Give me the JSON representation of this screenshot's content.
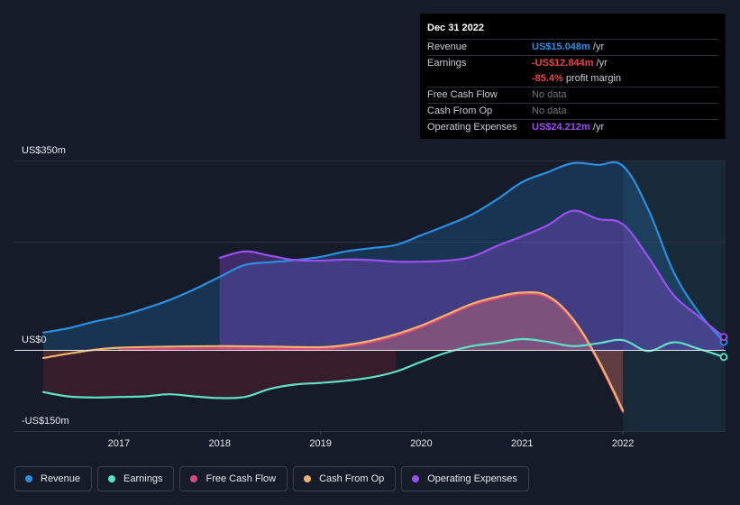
{
  "chart_data": {
    "type": "area",
    "x_ticks": [
      "2017",
      "2018",
      "2019",
      "2020",
      "2021",
      "2022"
    ],
    "y_tick_labels": [
      "US$350m",
      "US$0",
      "-US$150m"
    ],
    "ylim": [
      -150,
      350
    ],
    "xlim": [
      2016.25,
      2023.0
    ],
    "forecast_start": 2022.0,
    "series": [
      {
        "name": "Revenue",
        "color": "#2a8ee0",
        "points": [
          [
            2016.25,
            32
          ],
          [
            2016.5,
            40
          ],
          [
            2016.75,
            52
          ],
          [
            2017.0,
            62
          ],
          [
            2017.25,
            76
          ],
          [
            2017.5,
            92
          ],
          [
            2017.75,
            112
          ],
          [
            2018.0,
            135
          ],
          [
            2018.25,
            157
          ],
          [
            2018.5,
            162
          ],
          [
            2018.75,
            166
          ],
          [
            2019.0,
            172
          ],
          [
            2019.25,
            182
          ],
          [
            2019.5,
            188
          ],
          [
            2019.75,
            194
          ],
          [
            2020.0,
            212
          ],
          [
            2020.25,
            230
          ],
          [
            2020.5,
            250
          ],
          [
            2020.75,
            278
          ],
          [
            2021.0,
            310
          ],
          [
            2021.25,
            328
          ],
          [
            2021.5,
            345
          ],
          [
            2021.75,
            342
          ],
          [
            2022.0,
            340
          ],
          [
            2022.25,
            260
          ],
          [
            2022.5,
            145
          ],
          [
            2022.75,
            70
          ],
          [
            2023.0,
            15
          ]
        ]
      },
      {
        "name": "Earnings",
        "color": "#5ee0c6",
        "points": [
          [
            2016.25,
            -78
          ],
          [
            2016.5,
            -86
          ],
          [
            2016.75,
            -88
          ],
          [
            2017.0,
            -87
          ],
          [
            2017.25,
            -86
          ],
          [
            2017.5,
            -82
          ],
          [
            2017.75,
            -86
          ],
          [
            2018.0,
            -89
          ],
          [
            2018.25,
            -87
          ],
          [
            2018.5,
            -72
          ],
          [
            2018.75,
            -64
          ],
          [
            2019.0,
            -61
          ],
          [
            2019.25,
            -57
          ],
          [
            2019.5,
            -51
          ],
          [
            2019.75,
            -40
          ],
          [
            2020.0,
            -22
          ],
          [
            2020.25,
            -5
          ],
          [
            2020.5,
            7
          ],
          [
            2020.75,
            13
          ],
          [
            2021.0,
            20
          ],
          [
            2021.25,
            15
          ],
          [
            2021.5,
            7
          ],
          [
            2021.75,
            12
          ],
          [
            2022.0,
            18
          ],
          [
            2022.25,
            -2
          ],
          [
            2022.5,
            14
          ],
          [
            2022.75,
            2
          ],
          [
            2023.0,
            -13
          ]
        ]
      },
      {
        "name": "Free Cash Flow",
        "color": "#d9487f",
        "points": [
          [
            2017.0,
            0
          ],
          [
            2017.5,
            2
          ],
          [
            2018.0,
            3
          ],
          [
            2018.5,
            2
          ],
          [
            2019.0,
            2
          ],
          [
            2019.25,
            6
          ],
          [
            2019.5,
            14
          ],
          [
            2019.75,
            26
          ],
          [
            2020.0,
            42
          ],
          [
            2020.25,
            62
          ],
          [
            2020.5,
            82
          ],
          [
            2020.75,
            95
          ],
          [
            2021.0,
            103
          ],
          [
            2021.25,
            97
          ],
          [
            2021.5,
            55
          ],
          [
            2021.75,
            -20
          ],
          [
            2022.0,
            -115
          ]
        ]
      },
      {
        "name": "Cash From Op",
        "color": "#f0b36a",
        "points": [
          [
            2016.25,
            -15
          ],
          [
            2016.5,
            -7
          ],
          [
            2016.75,
            0
          ],
          [
            2017.0,
            4
          ],
          [
            2017.5,
            6
          ],
          [
            2018.0,
            7
          ],
          [
            2018.5,
            6
          ],
          [
            2019.0,
            5
          ],
          [
            2019.25,
            9
          ],
          [
            2019.5,
            17
          ],
          [
            2019.75,
            29
          ],
          [
            2020.0,
            45
          ],
          [
            2020.25,
            65
          ],
          [
            2020.5,
            85
          ],
          [
            2020.75,
            98
          ],
          [
            2021.0,
            106
          ],
          [
            2021.25,
            100
          ],
          [
            2021.5,
            58
          ],
          [
            2021.75,
            -17
          ],
          [
            2022.0,
            -112
          ]
        ]
      },
      {
        "name": "Operating Expenses",
        "color": "#9b4ff0",
        "points": [
          [
            2018.0,
            170
          ],
          [
            2018.25,
            182
          ],
          [
            2018.5,
            174
          ],
          [
            2018.75,
            166
          ],
          [
            2019.0,
            165
          ],
          [
            2019.25,
            167
          ],
          [
            2019.5,
            166
          ],
          [
            2019.75,
            163
          ],
          [
            2020.0,
            163
          ],
          [
            2020.25,
            165
          ],
          [
            2020.5,
            172
          ],
          [
            2020.75,
            192
          ],
          [
            2021.0,
            210
          ],
          [
            2021.25,
            230
          ],
          [
            2021.5,
            257
          ],
          [
            2021.75,
            242
          ],
          [
            2022.0,
            232
          ],
          [
            2022.25,
            172
          ],
          [
            2022.5,
            102
          ],
          [
            2022.75,
            62
          ],
          [
            2023.0,
            24
          ]
        ]
      }
    ]
  },
  "tooltip": {
    "date": "Dec 31 2022",
    "rows": [
      {
        "label": "Revenue",
        "value": "US$15.048m",
        "suffix": " /yr",
        "color": "#2a8ee0"
      },
      {
        "label": "Earnings",
        "value": "-US$12.844m",
        "suffix": " /yr",
        "color": "#e64545"
      },
      {
        "label": "",
        "value": "-85.4%",
        "suffix": " profit margin",
        "color": "#e64545"
      },
      {
        "label": "Free Cash Flow",
        "value": "No data",
        "suffix": "",
        "color": ""
      },
      {
        "label": "Cash From Op",
        "value": "No data",
        "suffix": "",
        "color": ""
      },
      {
        "label": "Operating Expenses",
        "value": "US$24.212m",
        "suffix": " /yr",
        "color": "#9b4ff0"
      }
    ]
  },
  "legend": [
    {
      "label": "Revenue",
      "color": "#2a8ee0"
    },
    {
      "label": "Earnings",
      "color": "#5ee0c6"
    },
    {
      "label": "Free Cash Flow",
      "color": "#d9487f"
    },
    {
      "label": "Cash From Op",
      "color": "#f0b36a"
    },
    {
      "label": "Operating Expenses",
      "color": "#9b4ff0"
    }
  ]
}
